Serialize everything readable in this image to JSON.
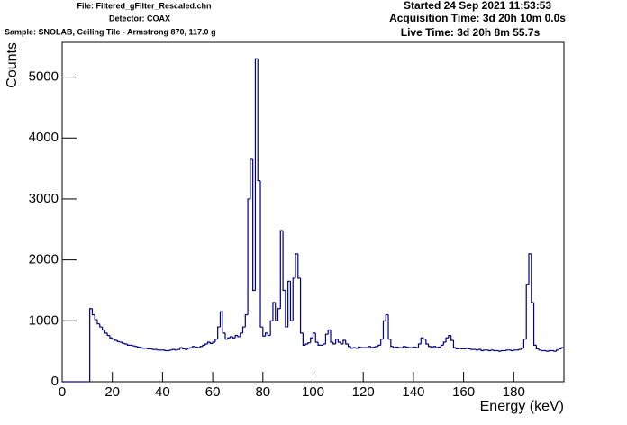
{
  "chart_data": {
    "type": "histogram",
    "info_left": [
      "File: Filtered_gFilter_Rescaled.chn",
      "Detector: COAX",
      "Sample: SNOLAB, Ceiling Tile - Armstrong 870, 117.0 g"
    ],
    "info_right": [
      "Started 24 Sep 2021 11:53:53",
      "Acquisition Time: 3d 20h 10m 0.0s",
      "Live Time: 3d 20h 8m 55.7s"
    ],
    "x_label": "Energy (keV)",
    "y_label": "Counts",
    "color": "#000080",
    "xlim": [
      0,
      200
    ],
    "ylim": [
      0,
      5570
    ],
    "xticks": [
      0,
      20,
      40,
      60,
      80,
      100,
      120,
      140,
      160,
      180
    ],
    "yticks": [
      0,
      1000,
      2000,
      3000,
      4000,
      5000
    ],
    "bins": [
      0,
      1,
      2,
      3,
      4,
      5,
      6,
      7,
      8,
      9,
      10,
      11,
      12,
      13,
      14,
      15,
      16,
      17,
      18,
      19,
      20,
      21,
      22,
      23,
      24,
      25,
      26,
      27,
      28,
      29,
      30,
      31,
      32,
      33,
      34,
      35,
      36,
      37,
      38,
      39,
      40,
      41,
      42,
      43,
      44,
      45,
      46,
      47,
      48,
      49,
      50,
      51,
      52,
      53,
      54,
      55,
      56,
      57,
      58,
      59,
      60,
      61,
      62,
      63,
      64,
      65,
      66,
      67,
      68,
      69,
      70,
      71,
      72,
      73,
      74,
      75,
      76,
      77,
      78,
      79,
      80,
      81,
      82,
      83,
      84,
      85,
      86,
      87,
      88,
      89,
      90,
      91,
      92,
      93,
      94,
      95,
      96,
      97,
      98,
      99,
      100,
      101,
      102,
      103,
      104,
      105,
      106,
      107,
      108,
      109,
      110,
      111,
      112,
      113,
      114,
      115,
      116,
      117,
      118,
      119,
      120,
      121,
      122,
      123,
      124,
      125,
      126,
      127,
      128,
      129,
      130,
      131,
      132,
      133,
      134,
      135,
      136,
      137,
      138,
      139,
      140,
      141,
      142,
      143,
      144,
      145,
      146,
      147,
      148,
      149,
      150,
      151,
      152,
      153,
      154,
      155,
      156,
      157,
      158,
      159,
      160,
      161,
      162,
      163,
      164,
      165,
      166,
      167,
      168,
      169,
      170,
      171,
      172,
      173,
      174,
      175,
      176,
      177,
      178,
      179,
      180,
      181,
      182,
      183,
      184,
      185,
      186,
      187,
      188,
      189,
      190,
      191,
      192,
      193,
      194,
      195,
      196,
      197,
      198,
      199,
      200
    ],
    "values": [
      0,
      0,
      0,
      0,
      0,
      0,
      0,
      0,
      0,
      0,
      0,
      1200,
      1100,
      1020,
      950,
      900,
      850,
      800,
      760,
      720,
      700,
      680,
      660,
      650,
      630,
      620,
      600,
      600,
      590,
      580,
      570,
      560,
      550,
      550,
      540,
      540,
      530,
      530,
      520,
      520,
      520,
      510,
      510,
      520,
      530,
      520,
      530,
      560,
      540,
      530,
      550,
      560,
      580,
      570,
      560,
      580,
      600,
      620,
      650,
      630,
      650,
      700,
      900,
      1150,
      800,
      700,
      720,
      740,
      720,
      760,
      740,
      800,
      900,
      1100,
      3000,
      3650,
      1500,
      5300,
      3300,
      900,
      750,
      800,
      760,
      1000,
      1300,
      1000,
      1200,
      2480,
      1500,
      900,
      1650,
      1000,
      1700,
      2100,
      1700,
      800,
      600,
      620,
      640,
      720,
      800,
      650,
      600,
      600,
      620,
      780,
      850,
      650,
      620,
      700,
      650,
      620,
      680,
      620,
      580,
      550,
      560,
      550,
      570,
      560,
      560,
      560,
      580,
      560,
      570,
      580,
      600,
      700,
      1000,
      1100,
      700,
      580,
      560,
      570,
      560,
      560,
      580,
      570,
      560,
      560,
      570,
      560,
      620,
      720,
      700,
      620,
      580,
      560,
      580,
      560,
      570,
      600,
      650,
      720,
      760,
      680,
      560,
      540,
      550,
      540,
      540,
      550,
      540,
      530,
      530,
      520,
      530,
      510,
      520,
      520,
      510,
      520,
      510,
      510,
      500,
      510,
      510,
      520,
      520,
      510,
      520,
      520,
      530,
      550,
      700,
      1600,
      2100,
      1300,
      600,
      540,
      520,
      510,
      510,
      500,
      510,
      510,
      500,
      520,
      540,
      560
    ]
  }
}
